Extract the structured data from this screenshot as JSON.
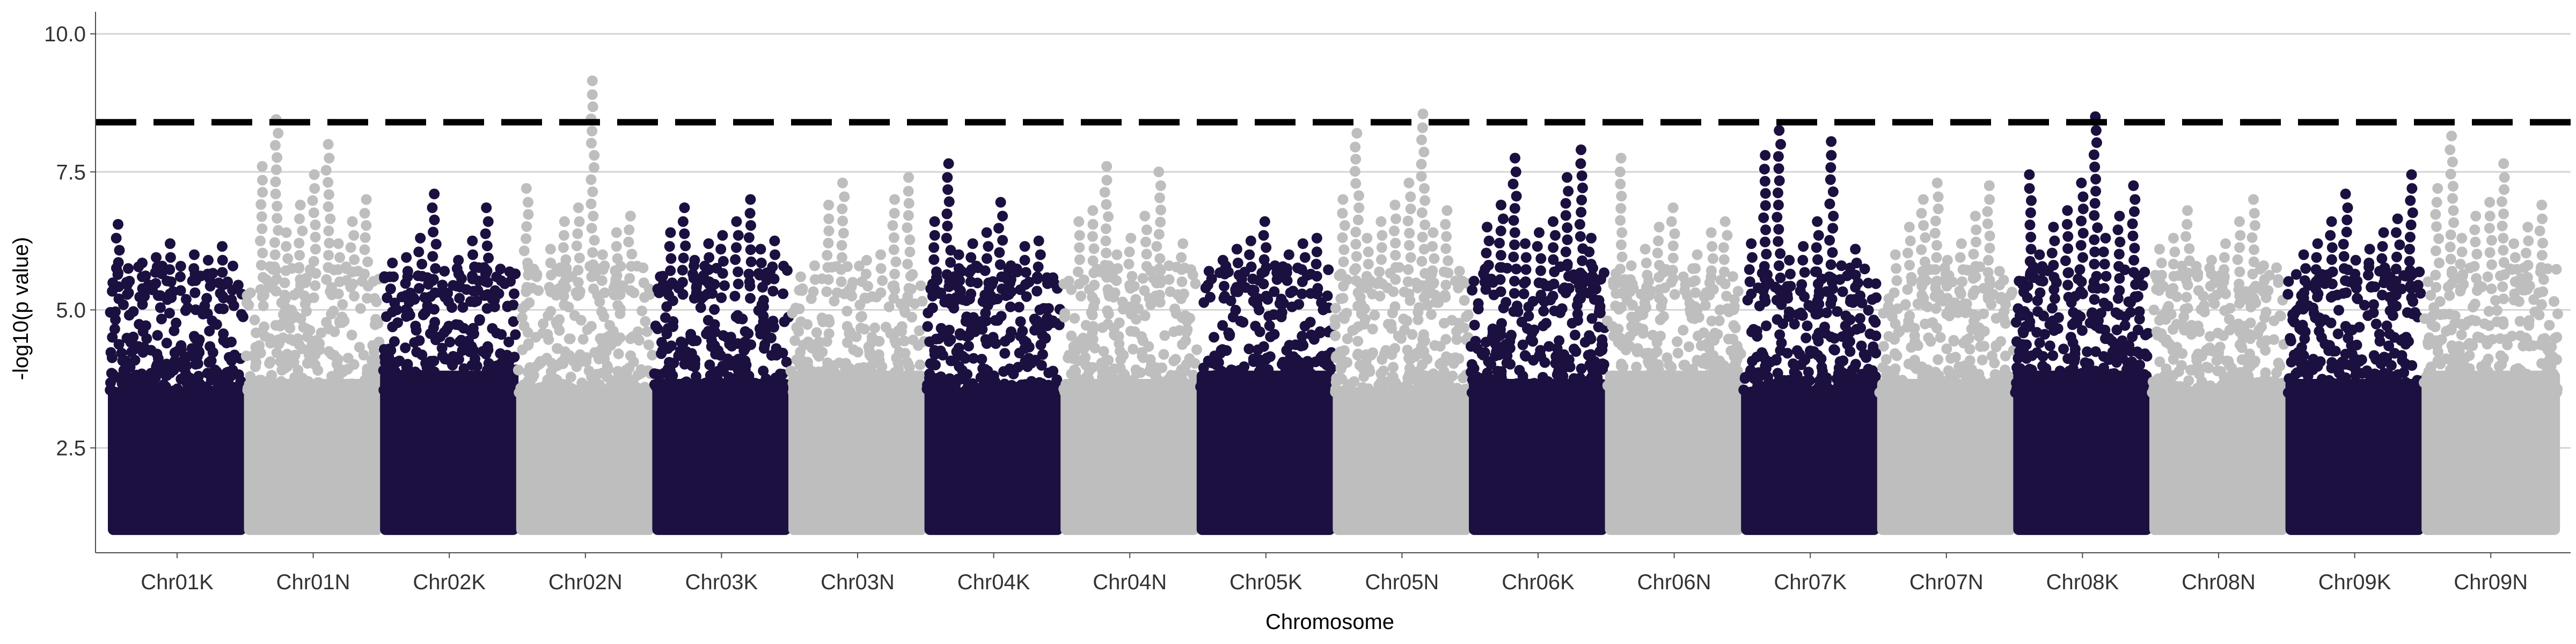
{
  "chart_data": {
    "type": "scatter",
    "subtype": "manhattan",
    "title": "",
    "xlabel": "Chromosome",
    "ylabel": "-log10(p value)",
    "ylim": [
      0.6,
      10.4
    ],
    "y_ticks": [
      2.5,
      5.0,
      7.5,
      10.0
    ],
    "y_tick_labels": [
      "2.5",
      "5.0",
      "7.5",
      "10.0"
    ],
    "grid": "horizontal major lines",
    "threshold": {
      "value": 8.4,
      "style": "dashed",
      "color": "#000000"
    },
    "colors": {
      "odd": "#1b1040",
      "even": "#bebebe"
    },
    "chromosomes": [
      {
        "name": "Chr01K",
        "top_points": [
          6.55,
          6.2,
          6.15,
          5.95,
          5.9,
          5.85,
          6.0,
          5.75,
          5.6
        ]
      },
      {
        "name": "Chr01N",
        "top_points": [
          8.45,
          8.0,
          7.6,
          7.45,
          7.0,
          6.9,
          6.6,
          6.4,
          6.2
        ]
      },
      {
        "name": "Chr02K",
        "top_points": [
          7.1,
          6.85,
          6.3,
          6.25,
          5.95,
          5.9,
          5.85,
          5.7,
          5.6
        ]
      },
      {
        "name": "Chr02N",
        "top_points": [
          9.15,
          7.2,
          6.85,
          6.7,
          6.6,
          6.4,
          6.1,
          6.0,
          5.6
        ]
      },
      {
        "name": "Chr03K",
        "top_points": [
          7.0,
          6.85,
          6.6,
          6.4,
          6.35,
          6.25,
          6.2,
          6.1,
          5.9
        ]
      },
      {
        "name": "Chr03N",
        "top_points": [
          7.4,
          7.3,
          7.0,
          6.9,
          6.0,
          5.8,
          5.9,
          5.6,
          5.5
        ]
      },
      {
        "name": "Chr04K",
        "top_points": [
          7.65,
          6.95,
          6.6,
          6.4,
          6.25,
          6.2,
          6.15,
          6.0,
          5.8
        ]
      },
      {
        "name": "Chr04N",
        "top_points": [
          7.6,
          7.5,
          6.8,
          6.7,
          6.6,
          6.3,
          6.2,
          6.0,
          5.8
        ]
      },
      {
        "name": "Chr05K",
        "top_points": [
          6.6,
          6.3,
          6.25,
          6.2,
          6.1,
          6.0,
          5.9,
          5.8,
          5.7
        ]
      },
      {
        "name": "Chr05N",
        "top_points": [
          8.55,
          8.2,
          7.3,
          7.0,
          6.9,
          6.8,
          6.6,
          6.4,
          6.3
        ]
      },
      {
        "name": "Chr06K",
        "top_points": [
          7.9,
          7.75,
          7.4,
          6.9,
          6.6,
          6.5,
          6.4,
          6.3,
          6.2
        ]
      },
      {
        "name": "Chr06N",
        "top_points": [
          7.75,
          6.85,
          6.6,
          6.5,
          6.4,
          6.1,
          6.0,
          5.8,
          5.6
        ]
      },
      {
        "name": "Chr07K",
        "top_points": [
          8.25,
          8.05,
          7.8,
          6.6,
          6.2,
          6.15,
          6.1,
          5.9,
          5.8
        ]
      },
      {
        "name": "Chr07N",
        "top_points": [
          7.3,
          7.25,
          7.0,
          6.7,
          6.5,
          6.2,
          6.0,
          5.9,
          5.7
        ]
      },
      {
        "name": "Chr08K",
        "top_points": [
          8.5,
          7.45,
          7.3,
          7.25,
          6.8,
          6.7,
          6.5,
          6.3,
          6.0
        ]
      },
      {
        "name": "Chr08N",
        "top_points": [
          7.0,
          6.8,
          6.6,
          6.3,
          6.2,
          6.1,
          5.9,
          5.8,
          5.6
        ]
      },
      {
        "name": "Chr09K",
        "top_points": [
          7.45,
          7.1,
          6.65,
          6.6,
          6.4,
          6.2,
          6.1,
          6.0,
          5.9
        ]
      },
      {
        "name": "Chr09N",
        "top_points": [
          8.15,
          7.65,
          7.2,
          6.95,
          6.9,
          6.7,
          6.5,
          6.3,
          6.2
        ]
      }
    ]
  }
}
